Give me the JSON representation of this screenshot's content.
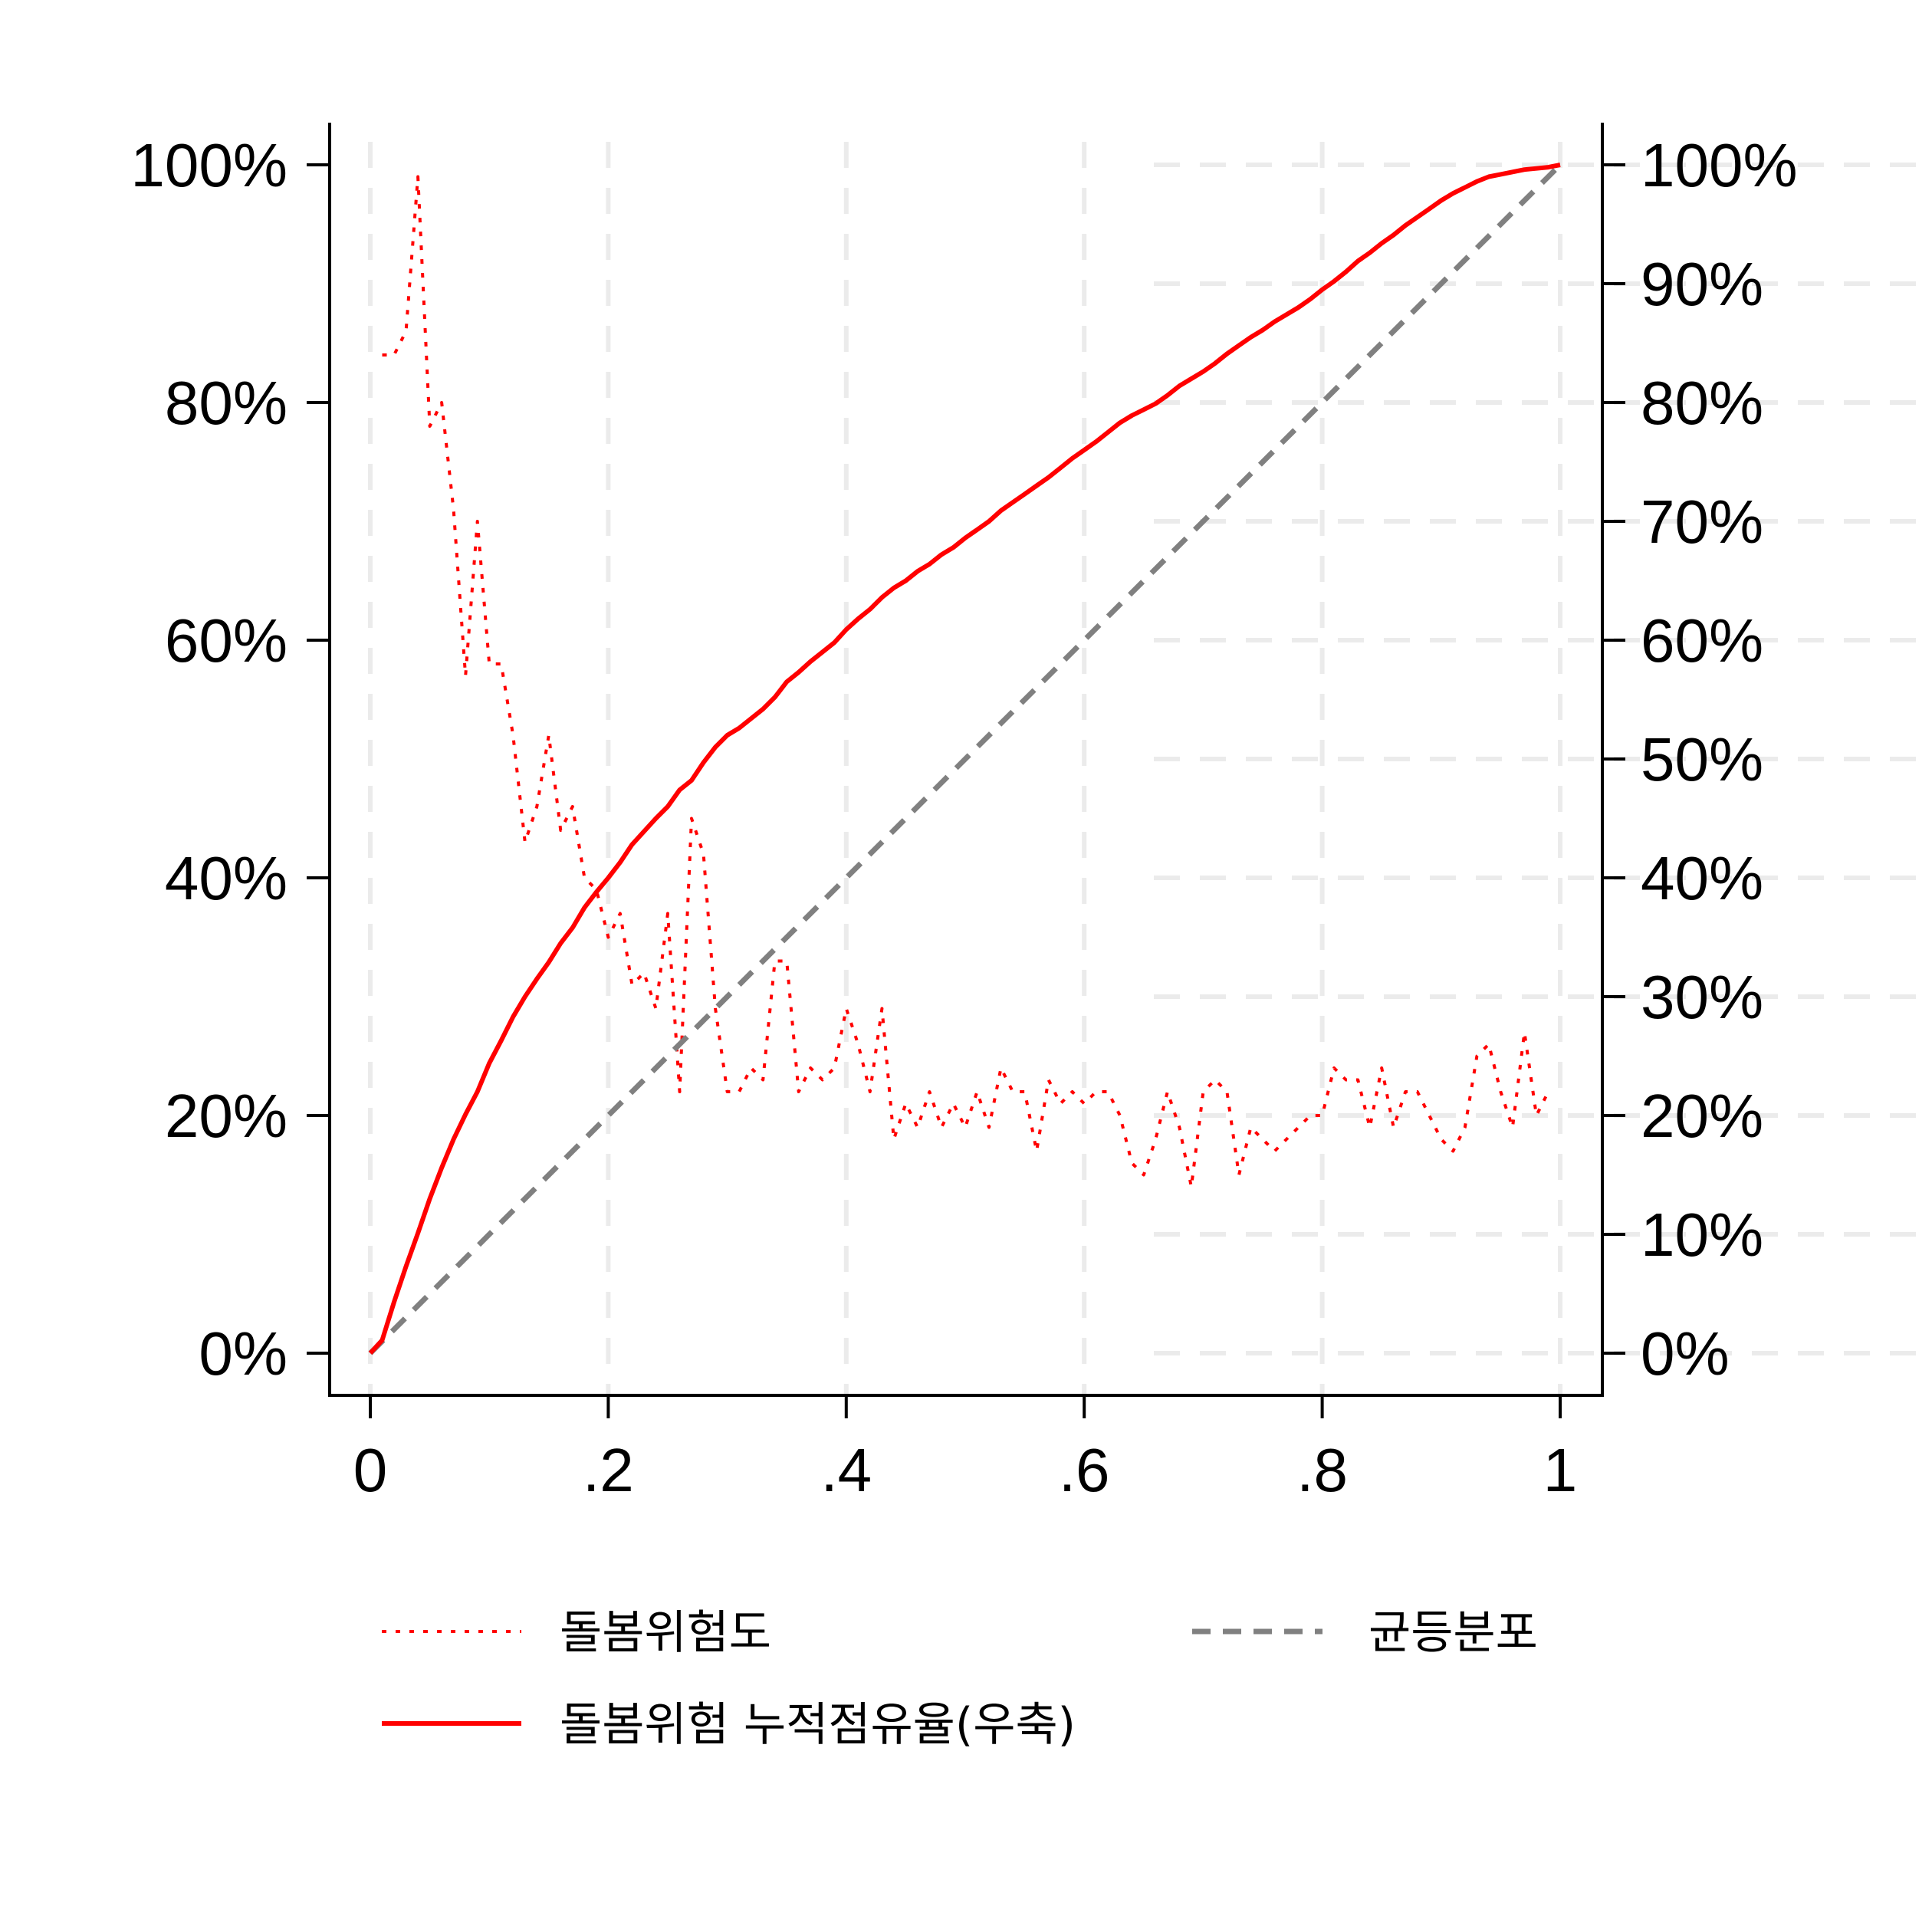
{
  "chart_data": {
    "type": "line",
    "title": "",
    "xlabel": "",
    "ylabel": "",
    "xlim": [
      0,
      1
    ],
    "ylim_left": [
      0,
      100
    ],
    "ylim_right": [
      0,
      100
    ],
    "grid": true,
    "legend_placement": "bottom",
    "x_ticks": [
      {
        "value": 0,
        "label": "0"
      },
      {
        "value": 0.2,
        "label": ".2"
      },
      {
        "value": 0.4,
        "label": ".4"
      },
      {
        "value": 0.6,
        "label": ".6"
      },
      {
        "value": 0.8,
        "label": ".8"
      },
      {
        "value": 1,
        "label": "1"
      }
    ],
    "y_left_ticks": [
      {
        "value": 0,
        "label": "0%"
      },
      {
        "value": 20,
        "label": "20%"
      },
      {
        "value": 40,
        "label": "40%"
      },
      {
        "value": 60,
        "label": "60%"
      },
      {
        "value": 80,
        "label": "80%"
      },
      {
        "value": 100,
        "label": "100%"
      }
    ],
    "y_right_ticks": [
      {
        "value": 0,
        "label": "0%"
      },
      {
        "value": 10,
        "label": "10%"
      },
      {
        "value": 20,
        "label": "20%"
      },
      {
        "value": 30,
        "label": "30%"
      },
      {
        "value": 40,
        "label": "40%"
      },
      {
        "value": 50,
        "label": "50%"
      },
      {
        "value": 60,
        "label": "60%"
      },
      {
        "value": 70,
        "label": "70%"
      },
      {
        "value": 80,
        "label": "80%"
      },
      {
        "value": 90,
        "label": "90%"
      },
      {
        "value": 100,
        "label": "100%"
      }
    ],
    "series": [
      {
        "name": "돌봄위험도",
        "axis": "left",
        "color": "#ff0000",
        "style": "dotted",
        "x": [
          0.01,
          0.02,
          0.03,
          0.04,
          0.05,
          0.06,
          0.07,
          0.08,
          0.09,
          0.1,
          0.11,
          0.12,
          0.13,
          0.14,
          0.15,
          0.16,
          0.17,
          0.18,
          0.19,
          0.2,
          0.21,
          0.22,
          0.23,
          0.24,
          0.25,
          0.26,
          0.27,
          0.28,
          0.29,
          0.3,
          0.31,
          0.32,
          0.33,
          0.34,
          0.35,
          0.36,
          0.37,
          0.38,
          0.39,
          0.4,
          0.41,
          0.42,
          0.43,
          0.44,
          0.45,
          0.46,
          0.47,
          0.48,
          0.49,
          0.5,
          0.51,
          0.52,
          0.53,
          0.54,
          0.55,
          0.56,
          0.57,
          0.58,
          0.59,
          0.6,
          0.61,
          0.62,
          0.63,
          0.64,
          0.65,
          0.66,
          0.67,
          0.68,
          0.69,
          0.7,
          0.71,
          0.72,
          0.73,
          0.74,
          0.75,
          0.76,
          0.77,
          0.78,
          0.79,
          0.8,
          0.81,
          0.82,
          0.83,
          0.84,
          0.85,
          0.86,
          0.87,
          0.88,
          0.89,
          0.9,
          0.91,
          0.92,
          0.93,
          0.94,
          0.95,
          0.96,
          0.97,
          0.98,
          0.99
        ],
        "y": [
          84,
          84,
          86,
          99,
          78,
          80,
          71,
          57,
          70,
          58,
          58,
          52,
          43,
          46,
          52,
          44,
          46,
          40,
          39,
          35,
          37,
          31,
          32,
          29,
          37,
          22,
          45,
          42,
          29,
          22,
          22,
          24,
          23,
          33,
          33,
          22,
          24,
          23,
          24,
          29,
          26,
          22,
          29,
          18,
          21,
          19,
          22,
          19,
          21,
          19,
          22,
          19,
          24,
          22,
          22,
          17,
          23,
          21,
          22,
          21,
          22,
          22,
          20,
          16,
          15,
          18,
          22,
          19,
          14,
          22,
          23,
          22,
          15,
          19,
          18,
          17,
          18,
          19,
          20,
          20,
          24,
          23,
          23,
          19,
          24,
          19,
          22,
          22,
          20,
          18,
          17,
          19,
          25,
          26,
          22,
          19,
          27,
          20,
          22
        ]
      },
      {
        "name": "균등분포",
        "axis": "right",
        "color": "#808080",
        "style": "dashed",
        "x": [
          0,
          1
        ],
        "y": [
          0,
          100
        ]
      },
      {
        "name": "돌봄위험 누적점유율(우축)",
        "axis": "right",
        "color": "#ff0000",
        "style": "solid",
        "x": [
          0,
          0.01,
          0.02,
          0.03,
          0.04,
          0.05,
          0.06,
          0.07,
          0.08,
          0.09,
          0.1,
          0.11,
          0.12,
          0.13,
          0.14,
          0.15,
          0.16,
          0.17,
          0.18,
          0.19,
          0.2,
          0.21,
          0.22,
          0.23,
          0.24,
          0.25,
          0.26,
          0.27,
          0.28,
          0.29,
          0.3,
          0.31,
          0.32,
          0.33,
          0.34,
          0.35,
          0.36,
          0.37,
          0.38,
          0.39,
          0.4,
          0.41,
          0.42,
          0.43,
          0.44,
          0.45,
          0.46,
          0.47,
          0.48,
          0.49,
          0.5,
          0.51,
          0.52,
          0.53,
          0.54,
          0.55,
          0.56,
          0.57,
          0.58,
          0.59,
          0.6,
          0.61,
          0.62,
          0.63,
          0.64,
          0.65,
          0.66,
          0.67,
          0.68,
          0.69,
          0.7,
          0.71,
          0.72,
          0.73,
          0.74,
          0.75,
          0.76,
          0.77,
          0.78,
          0.79,
          0.8,
          0.81,
          0.82,
          0.83,
          0.84,
          0.85,
          0.86,
          0.87,
          0.88,
          0.89,
          0.9,
          0.91,
          0.92,
          0.93,
          0.94,
          0.95,
          0.96,
          0.97,
          0.98,
          0.99,
          1.0
        ],
        "y": [
          0,
          1.1,
          4.3,
          7.3,
          10.1,
          13,
          15.6,
          18,
          20.1,
          22,
          24.4,
          26.3,
          28.3,
          30,
          31.5,
          32.9,
          34.5,
          35.8,
          37.5,
          38.8,
          40,
          41.3,
          42.8,
          43.9,
          45,
          46,
          47.4,
          48.2,
          49.7,
          51,
          52,
          52.6,
          53.4,
          54.2,
          55.2,
          56.5,
          57.3,
          58.2,
          59,
          59.8,
          60.9,
          61.8,
          62.6,
          63.6,
          64.4,
          65,
          65.8,
          66.4,
          67.2,
          67.8,
          68.6,
          69.3,
          70,
          70.9,
          71.6,
          72.3,
          73,
          73.7,
          74.5,
          75.3,
          76,
          76.7,
          77.5,
          78.3,
          78.9,
          79.4,
          79.9,
          80.6,
          81.4,
          82,
          82.6,
          83.3,
          84.1,
          84.8,
          85.5,
          86.1,
          86.8,
          87.4,
          88,
          88.7,
          89.5,
          90.2,
          91,
          91.9,
          92.6,
          93.4,
          94.1,
          94.9,
          95.6,
          96.3,
          97,
          97.6,
          98.1,
          98.6,
          99,
          99.2,
          99.4,
          99.6,
          99.7,
          99.8,
          100
        ]
      }
    ]
  }
}
